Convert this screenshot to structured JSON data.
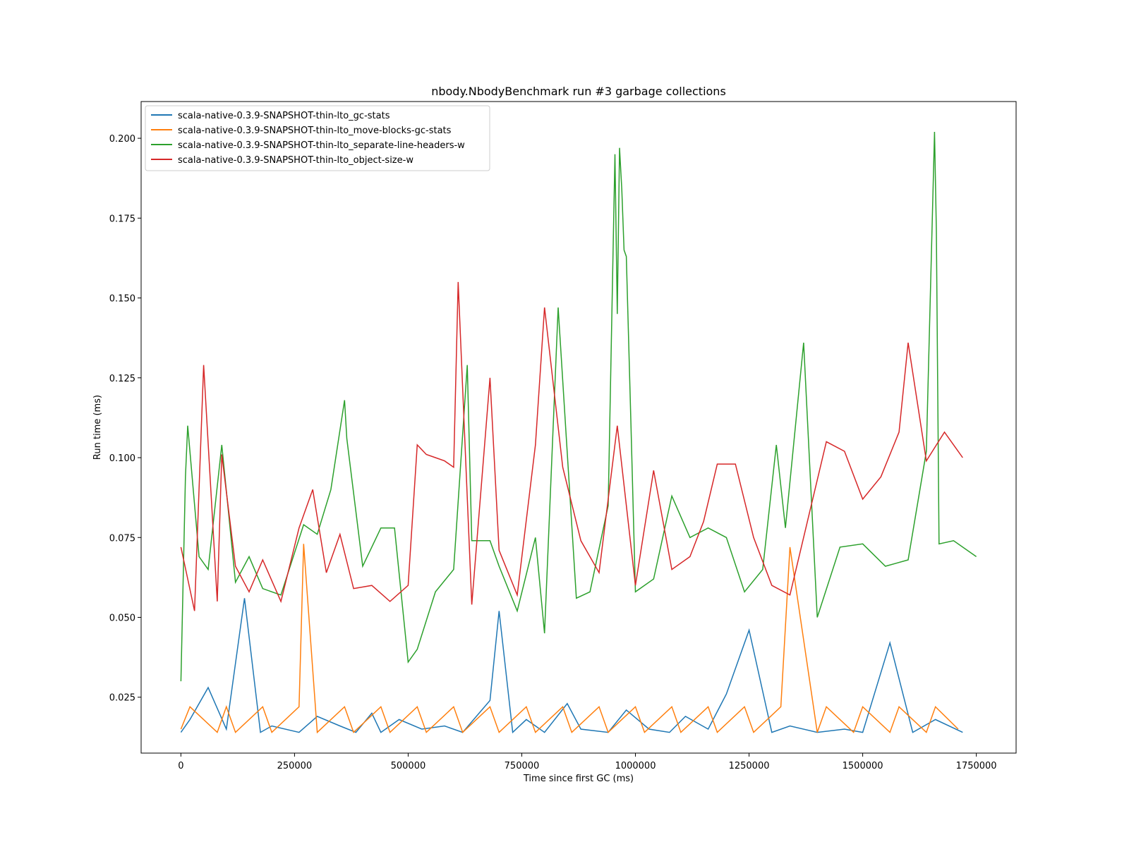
{
  "chart_data": {
    "type": "line",
    "title": "nbody.NbodyBenchmark run #3 garbage collections",
    "xlabel": "Time since first GC (ms)",
    "ylabel": "Run time (ms)",
    "xlim": [
      -87500,
      1837500
    ],
    "ylim": [
      0.0075,
      0.2115
    ],
    "xticks": [
      0,
      250000,
      500000,
      750000,
      1000000,
      1250000,
      1500000,
      1750000
    ],
    "xtick_labels": [
      "0",
      "250000",
      "500000",
      "750000",
      "1000000",
      "1250000",
      "1500000",
      "1750000"
    ],
    "yticks": [
      0.025,
      0.05,
      0.075,
      0.1,
      0.125,
      0.15,
      0.175,
      0.2
    ],
    "ytick_labels": [
      "0.025",
      "0.050",
      "0.075",
      "0.100",
      "0.125",
      "0.150",
      "0.175",
      "0.200"
    ],
    "grid": false,
    "legend_position": "upper-left",
    "series": [
      {
        "name": "scala-native-0.3.9-SNAPSHOT-thin-lto_gc-stats",
        "color": "#1f77b4",
        "x": [
          0,
          20000,
          60000,
          100000,
          140000,
          175000,
          200000,
          260000,
          300000,
          350000,
          385000,
          420000,
          440000,
          480000,
          530000,
          580000,
          620000,
          680000,
          700000,
          730000,
          760000,
          800000,
          850000,
          880000,
          940000,
          980000,
          1030000,
          1075000,
          1110000,
          1160000,
          1200000,
          1250000,
          1300000,
          1340000,
          1400000,
          1460000,
          1500000,
          1560000,
          1610000,
          1660000,
          1720000
        ],
        "values": [
          0.014,
          0.018,
          0.028,
          0.015,
          0.056,
          0.014,
          0.016,
          0.014,
          0.019,
          0.016,
          0.014,
          0.02,
          0.014,
          0.018,
          0.015,
          0.016,
          0.014,
          0.024,
          0.052,
          0.014,
          0.018,
          0.014,
          0.023,
          0.015,
          0.014,
          0.021,
          0.015,
          0.014,
          0.019,
          0.015,
          0.026,
          0.046,
          0.014,
          0.016,
          0.014,
          0.015,
          0.014,
          0.042,
          0.014,
          0.018,
          0.014
        ]
      },
      {
        "name": "scala-native-0.3.9-SNAPSHOT-thin-lto_move-blocks-gc-stats",
        "color": "#ff7f0e",
        "x": [
          0,
          20000,
          80000,
          100000,
          120000,
          180000,
          200000,
          260000,
          270000,
          300000,
          360000,
          380000,
          440000,
          460000,
          520000,
          540000,
          600000,
          620000,
          680000,
          700000,
          760000,
          780000,
          840000,
          860000,
          920000,
          940000,
          1000000,
          1020000,
          1080000,
          1100000,
          1160000,
          1180000,
          1240000,
          1260000,
          1320000,
          1340000,
          1400000,
          1420000,
          1480000,
          1500000,
          1560000,
          1580000,
          1640000,
          1660000,
          1710000
        ],
        "values": [
          0.015,
          0.022,
          0.014,
          0.022,
          0.014,
          0.022,
          0.014,
          0.022,
          0.073,
          0.014,
          0.022,
          0.014,
          0.022,
          0.014,
          0.022,
          0.014,
          0.022,
          0.014,
          0.022,
          0.014,
          0.022,
          0.014,
          0.022,
          0.014,
          0.022,
          0.014,
          0.022,
          0.014,
          0.022,
          0.014,
          0.022,
          0.014,
          0.022,
          0.014,
          0.022,
          0.072,
          0.014,
          0.022,
          0.014,
          0.022,
          0.014,
          0.022,
          0.014,
          0.022,
          0.015
        ]
      },
      {
        "name": "scala-native-0.3.9-SNAPSHOT-thin-lto_separate-line-headers-w",
        "color": "#2ca02c",
        "x": [
          0,
          10000,
          15000,
          40000,
          60000,
          90000,
          120000,
          150000,
          180000,
          220000,
          270000,
          300000,
          330000,
          360000,
          365000,
          400000,
          440000,
          470000,
          500000,
          520000,
          560000,
          600000,
          630000,
          640000,
          680000,
          700000,
          740000,
          780000,
          800000,
          830000,
          870000,
          900000,
          940000,
          955000,
          960000,
          965000,
          970000,
          975000,
          980000,
          990000,
          1000000,
          1040000,
          1080000,
          1120000,
          1160000,
          1200000,
          1240000,
          1280000,
          1310000,
          1330000,
          1370000,
          1400000,
          1450000,
          1500000,
          1550000,
          1600000,
          1640000,
          1658000,
          1662000,
          1668000,
          1700000,
          1750000
        ],
        "values": [
          0.03,
          0.094,
          0.11,
          0.069,
          0.065,
          0.104,
          0.061,
          0.069,
          0.059,
          0.057,
          0.079,
          0.076,
          0.09,
          0.118,
          0.106,
          0.066,
          0.078,
          0.078,
          0.036,
          0.04,
          0.058,
          0.065,
          0.129,
          0.074,
          0.074,
          0.066,
          0.052,
          0.075,
          0.045,
          0.147,
          0.056,
          0.058,
          0.085,
          0.195,
          0.145,
          0.197,
          0.184,
          0.165,
          0.163,
          0.111,
          0.058,
          0.062,
          0.088,
          0.075,
          0.078,
          0.075,
          0.058,
          0.065,
          0.104,
          0.078,
          0.136,
          0.05,
          0.072,
          0.073,
          0.066,
          0.068,
          0.102,
          0.202,
          0.171,
          0.073,
          0.074,
          0.069
        ]
      },
      {
        "name": "scala-native-0.3.9-SNAPSHOT-thin-lto_object-size-w",
        "color": "#d62728",
        "x": [
          0,
          30000,
          50000,
          80000,
          90000,
          120000,
          150000,
          180000,
          220000,
          260000,
          290000,
          320000,
          350000,
          380000,
          420000,
          460000,
          500000,
          520000,
          540000,
          560000,
          580000,
          600000,
          610000,
          640000,
          680000,
          700000,
          740000,
          780000,
          800000,
          840000,
          880000,
          920000,
          960000,
          1000000,
          1040000,
          1080000,
          1120000,
          1150000,
          1180000,
          1220000,
          1260000,
          1300000,
          1340000,
          1380000,
          1420000,
          1460000,
          1500000,
          1540000,
          1580000,
          1600000,
          1640000,
          1680000,
          1720000
        ],
        "values": [
          0.072,
          0.052,
          0.129,
          0.055,
          0.101,
          0.066,
          0.058,
          0.068,
          0.055,
          0.078,
          0.09,
          0.064,
          0.076,
          0.059,
          0.06,
          0.055,
          0.06,
          0.104,
          0.101,
          0.1,
          0.099,
          0.097,
          0.155,
          0.054,
          0.125,
          0.071,
          0.057,
          0.104,
          0.147,
          0.097,
          0.074,
          0.064,
          0.11,
          0.06,
          0.096,
          0.065,
          0.069,
          0.08,
          0.098,
          0.098,
          0.075,
          0.06,
          0.057,
          0.081,
          0.105,
          0.102,
          0.087,
          0.094,
          0.108,
          0.136,
          0.099,
          0.108,
          0.1
        ]
      }
    ]
  }
}
